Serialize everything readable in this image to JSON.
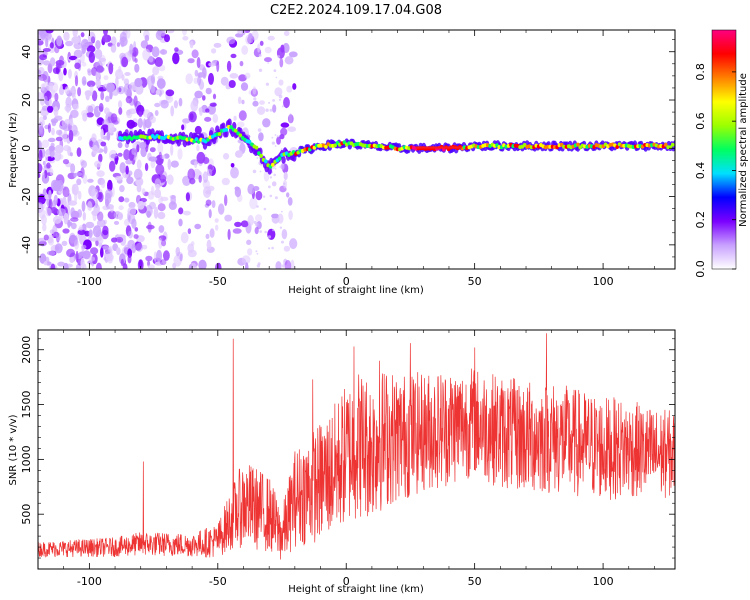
{
  "title": "C2E2.2024.109.17.04.G08",
  "chart_data": [
    {
      "type": "heatmap",
      "xlabel": "Height of straight line (km)",
      "ylabel": "Frequency (Hz)",
      "xlim": [
        -120,
        128
      ],
      "ylim": [
        -50,
        49
      ],
      "x_ticks": [
        -100,
        -50,
        0,
        50,
        100
      ],
      "y_ticks": [
        -40,
        -20,
        0,
        20,
        40
      ],
      "colorbar": {
        "label": "Normalized spectral amplitude",
        "range": [
          0,
          0.97
        ],
        "ticks": [
          "0.0",
          "0.2",
          "0.4",
          "0.6",
          "0.8"
        ],
        "tick_values": [
          0.0,
          0.2,
          0.4,
          0.6,
          0.8
        ],
        "colors": [
          "#ffffff",
          "#c8a0ff",
          "#7a00ff",
          "#0000ff",
          "#00e0ff",
          "#00ff60",
          "#9cff00",
          "#ffff00",
          "#ff8000",
          "#ff0000",
          "#ff0080"
        ]
      },
      "ridge": [
        [
          -85,
          4
        ],
        [
          -75,
          5
        ],
        [
          -65,
          4
        ],
        [
          -55,
          3
        ],
        [
          -45,
          9
        ],
        [
          -40,
          4
        ],
        [
          -35,
          0
        ],
        [
          -30,
          -8
        ],
        [
          -25,
          -3
        ],
        [
          -20,
          -2
        ],
        [
          -10,
          1
        ],
        [
          0,
          2
        ],
        [
          10,
          1
        ],
        [
          20,
          0
        ],
        [
          30,
          0
        ],
        [
          40,
          0
        ],
        [
          50,
          1
        ],
        [
          60,
          1
        ],
        [
          70,
          1
        ],
        [
          80,
          1
        ],
        [
          90,
          1
        ],
        [
          100,
          1
        ],
        [
          110,
          1
        ],
        [
          120,
          1
        ],
        [
          128,
          1
        ]
      ]
    },
    {
      "type": "line",
      "xlabel": "Height of straight line (km)",
      "ylabel": "SNR (10 * v/v)",
      "xlim": [
        -120,
        128
      ],
      "ylim": [
        0,
        2180
      ],
      "x_ticks": [
        -100,
        -50,
        0,
        50,
        100
      ],
      "y_ticks": [
        500,
        1000,
        1500,
        2000
      ],
      "color": "#ee3333",
      "envelope_x": [
        -120,
        -90,
        -80,
        -60,
        -50,
        -45,
        -40,
        -35,
        -30,
        -25,
        -20,
        -15,
        -10,
        -5,
        0,
        5,
        10,
        15,
        20,
        30,
        40,
        50,
        60,
        70,
        80,
        90,
        100,
        110,
        120,
        128
      ],
      "envelope_mean": [
        180,
        200,
        230,
        220,
        260,
        450,
        600,
        550,
        500,
        300,
        650,
        720,
        800,
        900,
        1050,
        1150,
        1100,
        1200,
        1200,
        1250,
        1300,
        1350,
        1250,
        1200,
        1200,
        1150,
        1100,
        1100,
        1050,
        1050
      ],
      "envelope_amp": [
        70,
        90,
        110,
        110,
        160,
        280,
        400,
        380,
        350,
        250,
        450,
        500,
        550,
        600,
        650,
        700,
        650,
        650,
        600,
        550,
        550,
        500,
        520,
        520,
        520,
        500,
        480,
        450,
        420,
        400
      ],
      "peaks": [
        [
          -79,
          980
        ],
        [
          -44,
          2100
        ],
        [
          -13,
          1730
        ],
        [
          3,
          2030
        ],
        [
          13,
          1900
        ],
        [
          25,
          2060
        ],
        [
          50,
          2020
        ],
        [
          78,
          2150
        ]
      ]
    }
  ]
}
